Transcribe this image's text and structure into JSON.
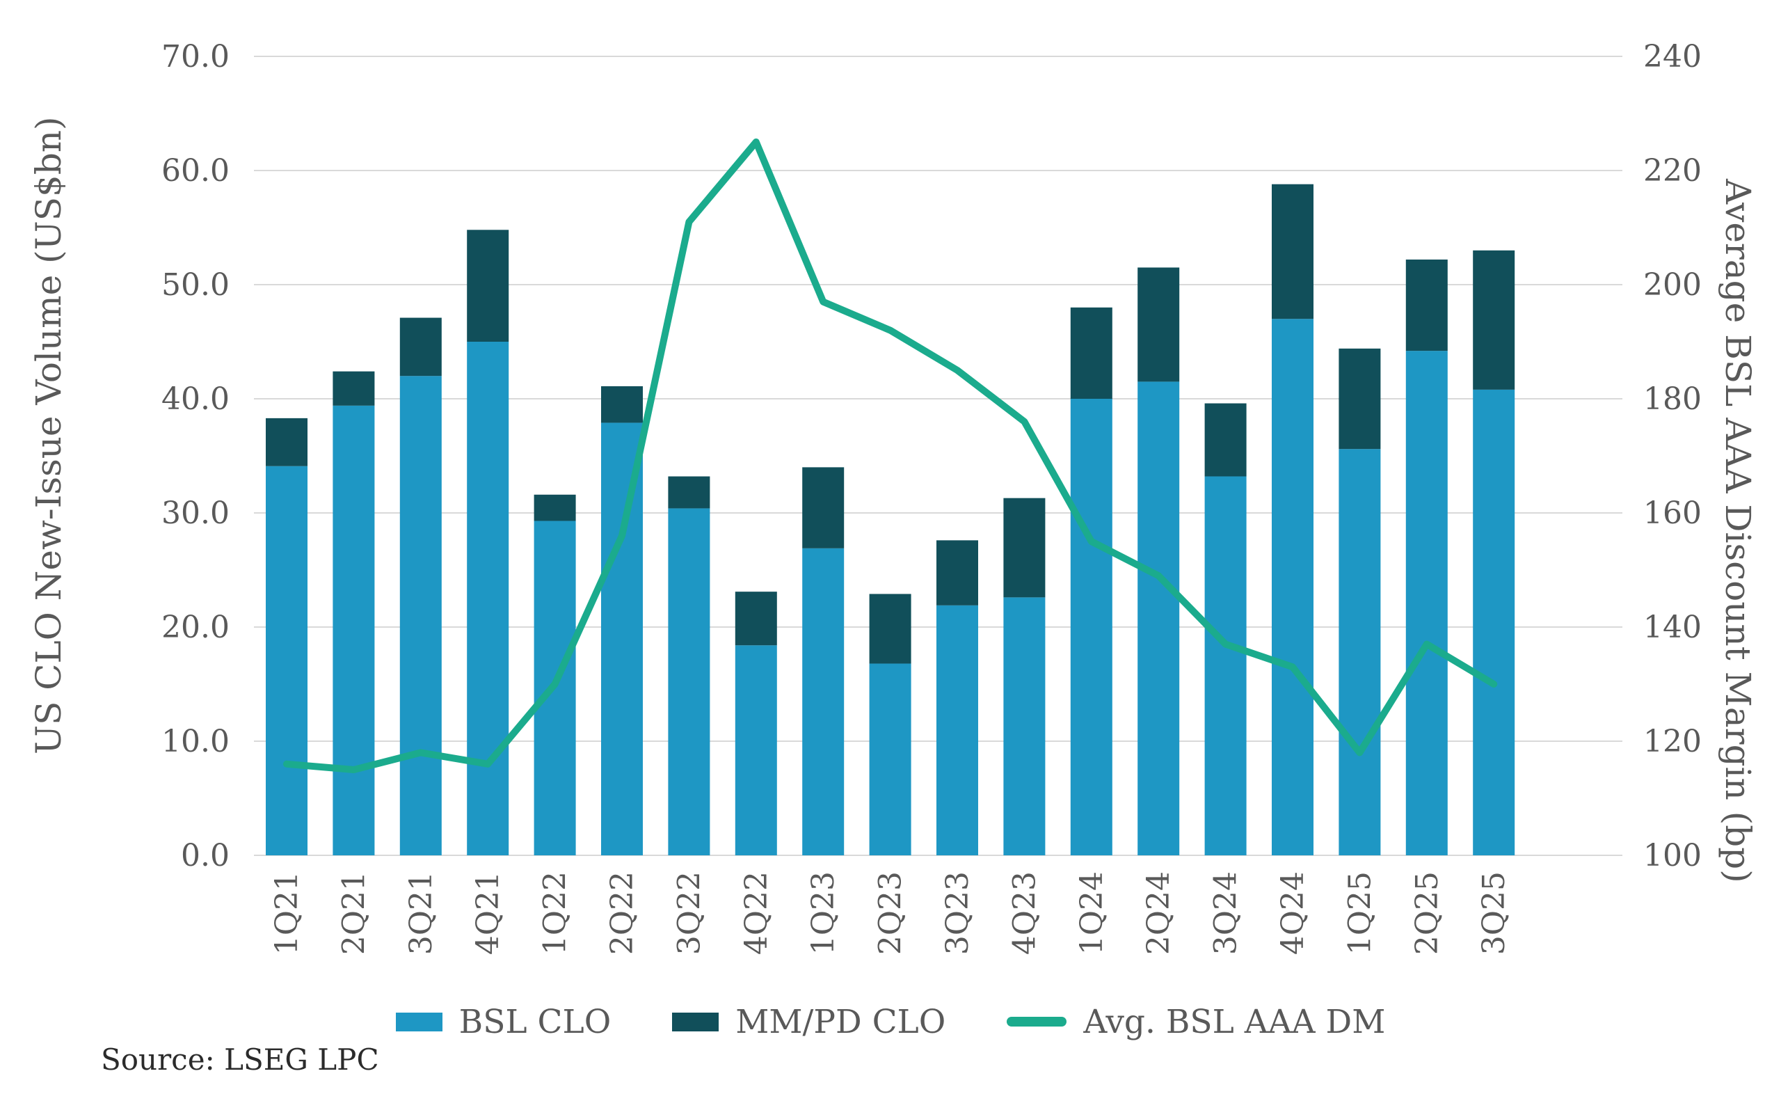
{
  "page": {
    "background": "#FFFFFF"
  },
  "source_note": "Source: LSEG LPC",
  "chart_data": {
    "type": "bar",
    "subtype": "stacked-bar-with-line-dual-axis",
    "title": "",
    "categories": [
      "1Q21",
      "2Q21",
      "3Q21",
      "4Q21",
      "1Q22",
      "2Q22",
      "3Q22",
      "4Q22",
      "1Q23",
      "2Q23",
      "3Q23",
      "4Q23",
      "1Q24",
      "2Q24",
      "3Q24",
      "4Q24",
      "1Q25",
      "2Q25",
      "3Q25"
    ],
    "series": [
      {
        "name": "BSL CLO",
        "type": "bar",
        "stack": "volume",
        "axis": "left",
        "color": "#1E97C4",
        "values": [
          34.1,
          39.4,
          42.0,
          45.0,
          29.3,
          37.9,
          30.4,
          18.4,
          26.9,
          16.8,
          21.9,
          22.6,
          40.0,
          41.5,
          33.2,
          47.0,
          35.6,
          44.2,
          40.8
        ]
      },
      {
        "name": "MM/PD CLO",
        "type": "bar",
        "stack": "volume",
        "axis": "left",
        "color": "#114F5A",
        "values": [
          4.2,
          3.0,
          5.1,
          9.8,
          2.3,
          3.2,
          2.8,
          4.7,
          7.1,
          6.1,
          5.7,
          8.7,
          8.0,
          10.0,
          6.4,
          11.8,
          8.8,
          8.0,
          12.2
        ]
      },
      {
        "name": "Avg. BSL AAA DM",
        "type": "line",
        "axis": "right",
        "color": "#1BAB8D",
        "values": [
          116,
          115,
          118,
          116,
          130,
          156,
          211,
          225,
          197,
          192,
          185,
          176,
          155,
          149,
          137,
          133,
          118,
          137,
          130
        ]
      }
    ],
    "left_axis": {
      "label": "US CLO New-Issue Volume (US$bn)",
      "min": 0,
      "max": 70,
      "step": 10,
      "decimals": 1
    },
    "right_axis": {
      "label": "Average BSL AAA Discount Margin (bp)",
      "min": 100,
      "max": 240,
      "step": 20,
      "decimals": 0
    },
    "grid": true,
    "legend_position": "bottom",
    "text_color": "#595959",
    "grid_color": "#D9D9D9"
  }
}
